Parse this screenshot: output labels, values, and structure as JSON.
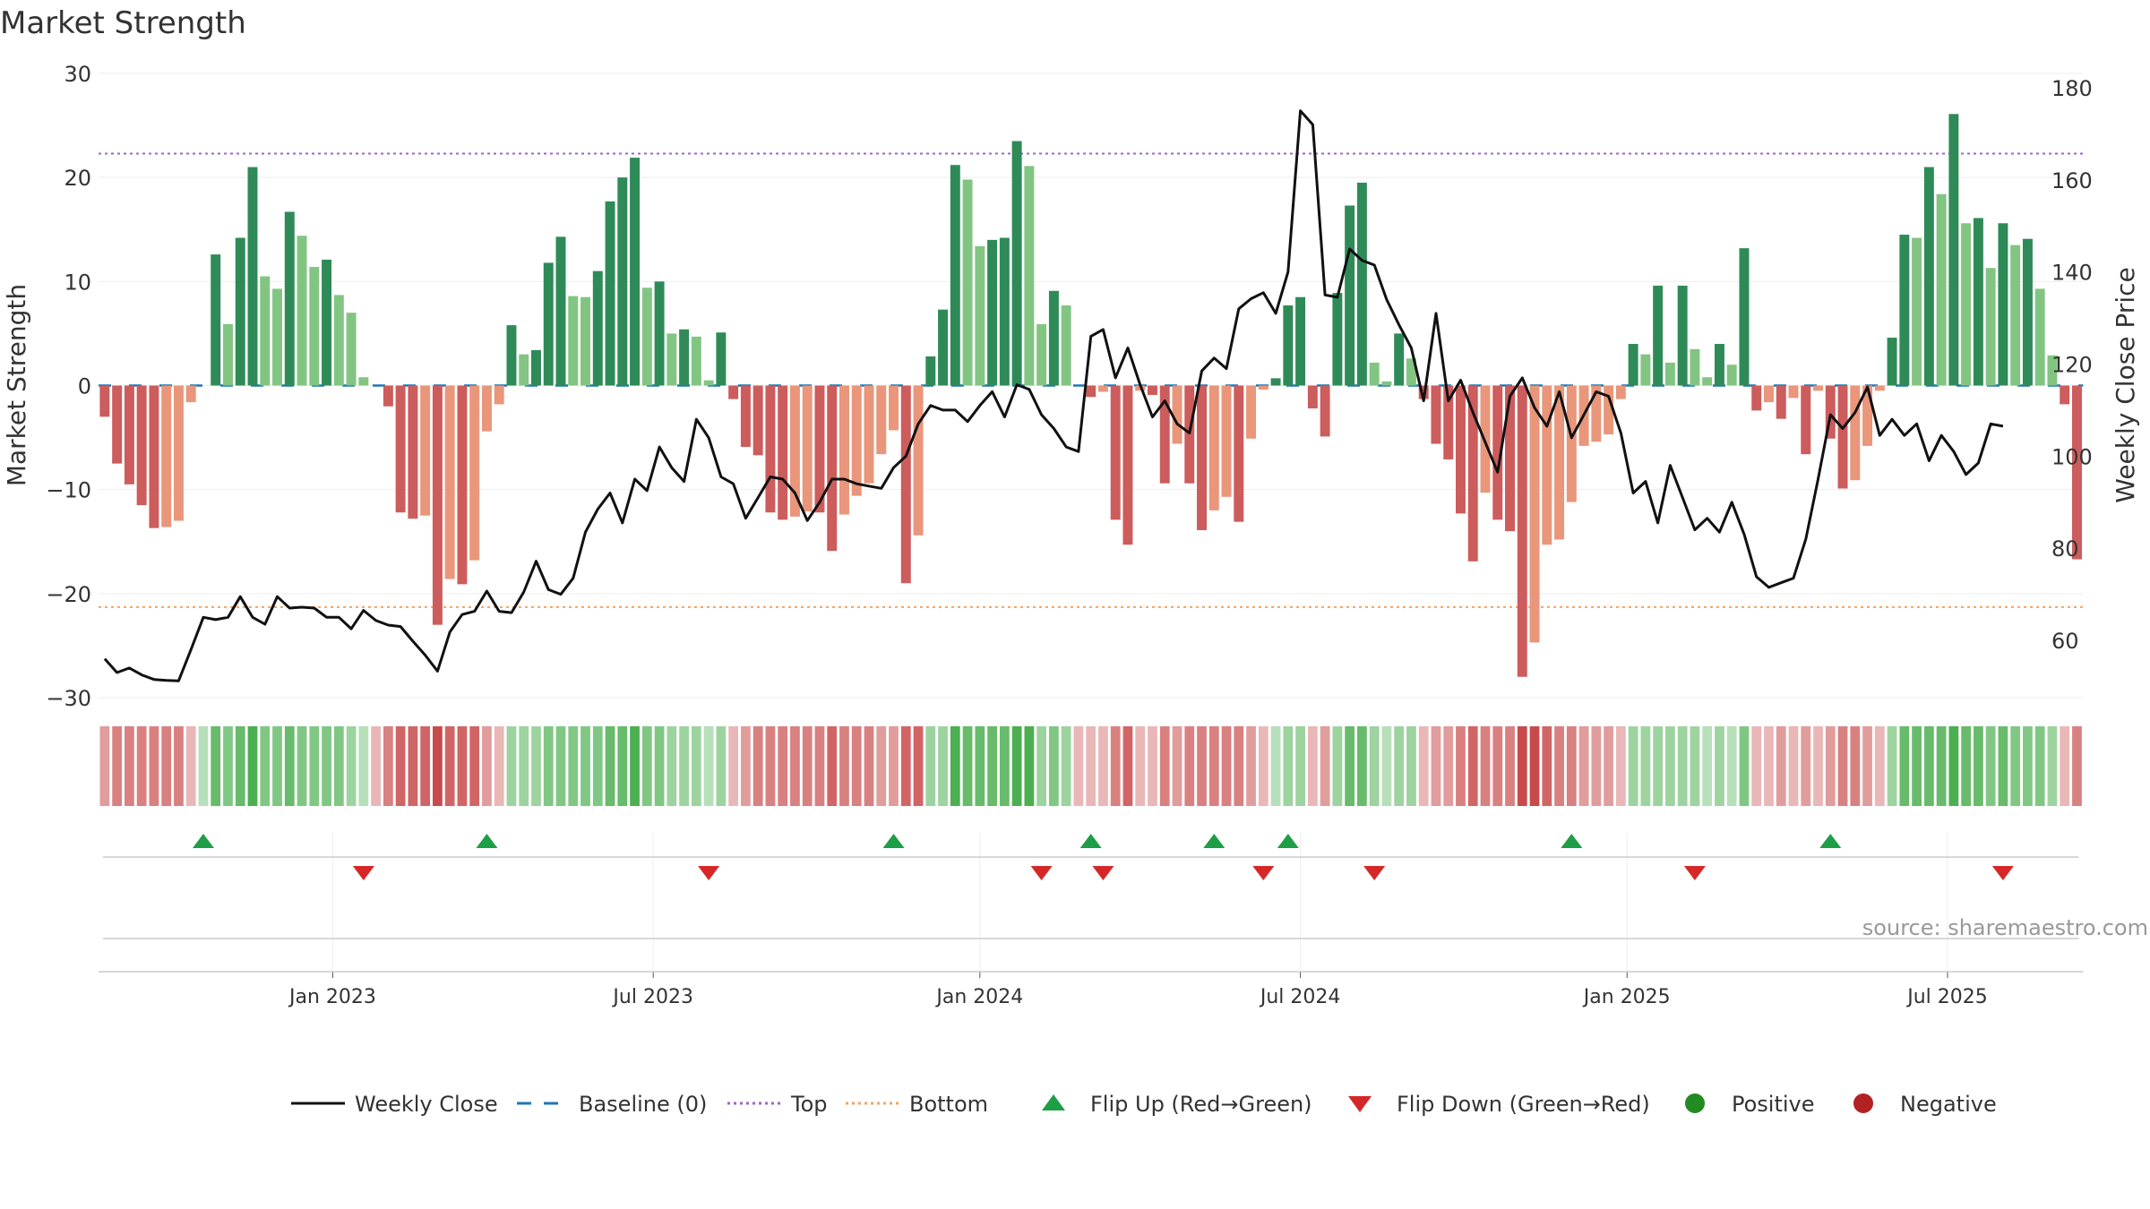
{
  "chart_data": {
    "type": "bar",
    "title": "Market Strength",
    "ylabel": "Market Strength",
    "y2label": "Weekly Close Price",
    "ylim": [
      -30,
      30
    ],
    "y2lim": [
      45,
      184
    ],
    "yticks": [
      30,
      20,
      10,
      0,
      -10,
      -20,
      -30
    ],
    "y2ticks": [
      180,
      160,
      140,
      120,
      100,
      80,
      60
    ],
    "xticks": [
      {
        "label": "Jan 2023",
        "week": 19
      },
      {
        "label": "Jul 2023",
        "week": 45
      },
      {
        "label": "Jan 2024",
        "week": 71.5
      },
      {
        "label": "Jul 2024",
        "week": 97.5
      },
      {
        "label": "Jan 2025",
        "week": 124
      },
      {
        "label": "Jul 2025",
        "week": 150
      }
    ],
    "top_line": 22.3,
    "bottom_line": -21.3,
    "strength": [
      -3,
      -7.5,
      -9.5,
      -11.5,
      -13.7,
      -13.6,
      -13,
      -1.6,
      0,
      12.6,
      5.9,
      14.2,
      21,
      10.5,
      9.3,
      16.7,
      14.4,
      11.4,
      12.1,
      8.7,
      7,
      0.8,
      0,
      -2,
      -12.2,
      -12.8,
      -12.5,
      -23,
      -18.6,
      -19.1,
      -16.8,
      -4.4,
      -1.8,
      5.8,
      3,
      3.4,
      11.8,
      14.3,
      8.6,
      8.5,
      11,
      17.7,
      20,
      21.9,
      9.4,
      10,
      5,
      5.4,
      4.7,
      0.5,
      5.1,
      -1.3,
      -5.9,
      -6.7,
      -12.2,
      -12.9,
      -12.6,
      -12.1,
      -12.2,
      -15.9,
      -12.4,
      -10.6,
      -9.4,
      -6.6,
      -4.3,
      -19,
      -14.4,
      2.8,
      7.3,
      21.2,
      19.8,
      13.4,
      14,
      14.2,
      23.5,
      21.1,
      5.9,
      9.1,
      7.7,
      0,
      -1.1,
      -0.6,
      -12.9,
      -15.3,
      -0.5,
      -0.9,
      -9.4,
      -5.6,
      -9.4,
      -13.9,
      -12,
      -10.7,
      -13.1,
      -5.1,
      -0.4,
      0.7,
      7.7,
      8.5,
      -2.2,
      -4.9,
      8.9,
      17.3,
      19.5,
      2.2,
      0.4,
      5,
      2.6,
      -1.3,
      -5.6,
      -7.1,
      -12.3,
      -16.9,
      -10.3,
      -12.9,
      -14,
      -28,
      -24.7,
      -15.3,
      -14.8,
      -11.2,
      -5.8,
      -5.4,
      -4.7,
      -1.3,
      4,
      3,
      9.6,
      2.2,
      9.6,
      3.5,
      0.8,
      4,
      2,
      13.2,
      -2.4,
      -1.6,
      -3.2,
      -1.2,
      -6.6,
      -0.5,
      -5.1,
      -9.9,
      -9.1,
      -5.8,
      -0.5,
      4.6,
      14.5,
      14.2,
      21,
      18.4,
      26.1,
      15.6,
      16.1,
      11.3,
      15.6,
      13.5,
      14.1,
      9.3,
      2.9,
      -1.8,
      -16.7
    ],
    "price": [
      56,
      53,
      54,
      52.5,
      51.5,
      51.3,
      51.2,
      58,
      65,
      64.5,
      65,
      69.5,
      65,
      63.5,
      69.5,
      67,
      67.2,
      67,
      65,
      65,
      62.5,
      66.5,
      64.3,
      63.3,
      63,
      59.8,
      56.8,
      53.3,
      61.8,
      65.6,
      66.3,
      70.7,
      66.3,
      66,
      70.5,
      77.2,
      71,
      70,
      73.5,
      83.5,
      88.5,
      92,
      85.5,
      95,
      92.5,
      102,
      97.5,
      94.5,
      108,
      104,
      95.5,
      94,
      86.5,
      91,
      95.5,
      95,
      92,
      86,
      90,
      95,
      95,
      94,
      93.5,
      93,
      97.5,
      100,
      107,
      111,
      110,
      110,
      107.5,
      111,
      114,
      108.5,
      115.5,
      114.5,
      109,
      106,
      102,
      101,
      126,
      127.5,
      117,
      123.5,
      115.5,
      108.5,
      112,
      107,
      105,
      118.5,
      121.3,
      119,
      132,
      134.2,
      135.5,
      131,
      140,
      175,
      172,
      135,
      134.5,
      145,
      142.5,
      141.5,
      134,
      128.5,
      123.5,
      112,
      131,
      112,
      116.5,
      109.5,
      103,
      96.5,
      113,
      117,
      110.5,
      106.5,
      114,
      104,
      109,
      114,
      113,
      105,
      92,
      94.5,
      85.5,
      98,
      91,
      84,
      86.5,
      83.5,
      90,
      83,
      73.8,
      71.5,
      72.5,
      73.5,
      82,
      95,
      109,
      106,
      109.5,
      115,
      104.5,
      108,
      104.5,
      107,
      99,
      104.5,
      101,
      96,
      98.5,
      107,
      106.5
    ],
    "signal_strip": [
      -2,
      -3,
      -3,
      -3,
      -3,
      -3,
      -3,
      -1,
      1,
      4,
      3,
      4,
      5,
      3,
      3,
      4,
      3,
      3,
      3,
      3,
      2,
      1,
      -1,
      -3,
      -4,
      -4,
      -4,
      -5,
      -4,
      -4,
      -4,
      -2,
      -1,
      2,
      2,
      2,
      3,
      3,
      3,
      3,
      3,
      4,
      4,
      5,
      3,
      3,
      2,
      2,
      2,
      1,
      2,
      -1,
      -2,
      -3,
      -3,
      -3,
      -3,
      -3,
      -3,
      -4,
      -3,
      -3,
      -3,
      -2,
      -2,
      -4,
      -4,
      2,
      2,
      5,
      4,
      4,
      4,
      4,
      5,
      5,
      2,
      3,
      2,
      -1,
      -1,
      -1,
      -3,
      -4,
      -1,
      -1,
      -3,
      -2,
      -3,
      -3,
      -3,
      -3,
      -3,
      -2,
      -1,
      1,
      2,
      2,
      -1,
      -2,
      2,
      4,
      4,
      2,
      1,
      2,
      2,
      -1,
      -2,
      -2,
      -3,
      -4,
      -3,
      -3,
      -3,
      -5,
      -5,
      -4,
      -3,
      -3,
      -2,
      -2,
      -2,
      -1,
      2,
      2,
      2,
      2,
      2,
      2,
      1,
      2,
      1,
      3,
      -1,
      -1,
      -2,
      -1,
      -2,
      -1,
      -2,
      -3,
      -3,
      -2,
      -1,
      2,
      4,
      4,
      4,
      4,
      5,
      4,
      4,
      3,
      4,
      3,
      3,
      3,
      2,
      -1,
      -3
    ],
    "flip_up_weeks": [
      8.5,
      31.5,
      64.5,
      80.5,
      90.5,
      96.5,
      119.5,
      140.5
    ],
    "flip_down_weeks": [
      21.5,
      49.5,
      76.5,
      81.5,
      94.5,
      103.5,
      129.5,
      154.5
    ],
    "colors": {
      "green_dark": "#2e8b57",
      "green_light": "#82c582",
      "red_dark": "#cd5c5c",
      "red_light": "#e9967a",
      "top_line": "#9966cc",
      "bottom_line": "#f4a460",
      "baseline": "#1f77b4",
      "price_line": "#111111",
      "flip_up": "#1e9e46",
      "flip_down": "#d62728",
      "strip_green": "#4caf50",
      "strip_red": "#c94a4a"
    },
    "legend": [
      {
        "label": "Weekly Close",
        "kind": "line-solid",
        "color": "#111111"
      },
      {
        "label": "Baseline (0)",
        "kind": "line-dash",
        "color": "#1f77b4"
      },
      {
        "label": "Top",
        "kind": "line-dot",
        "color": "#9966cc"
      },
      {
        "label": "Bottom",
        "kind": "line-dot",
        "color": "#f4a460"
      },
      {
        "label": "Flip Up (Red→Green)",
        "kind": "tri-up",
        "color": "#1e9e46"
      },
      {
        "label": "Flip Down (Green→Red)",
        "kind": "tri-down",
        "color": "#d62728"
      },
      {
        "label": "Positive",
        "kind": "dot",
        "color": "#228b22"
      },
      {
        "label": "Negative",
        "kind": "dot",
        "color": "#b22222"
      }
    ]
  },
  "watermark": "source: sharemaestro.com"
}
